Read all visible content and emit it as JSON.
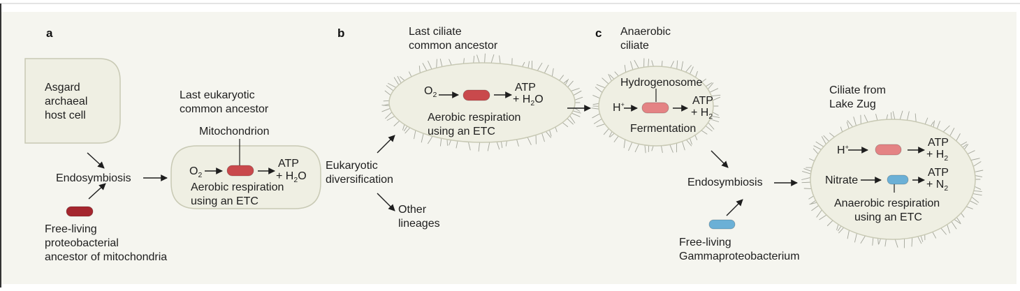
{
  "panels": {
    "a": "a",
    "b": "b",
    "c": "c"
  },
  "a": {
    "host_cell": [
      "Asgard",
      "archaeal",
      "host cell"
    ],
    "endosymbiosis": "Endosymbiosis",
    "free_living": [
      "Free-living",
      "proteobacterial",
      "ancestor of mitochondria"
    ],
    "lec_title": [
      "Last eukaryotic",
      "common ancestor"
    ],
    "mitochondrion": "Mitochondrion",
    "o2": "O",
    "o2_sub": "2",
    "atp": "ATP",
    "h2o_prefix": "+ H",
    "h2o_sub": "2",
    "h2o_suffix": "O",
    "aerobic": [
      "Aerobic respiration",
      "using an ETC"
    ],
    "diversification": [
      "Eukaryotic",
      "diversification"
    ]
  },
  "b": {
    "title": [
      "Last ciliate",
      "common ancestor"
    ],
    "o2": "O",
    "o2_sub": "2",
    "atp": "ATP",
    "h2o_prefix": "+ H",
    "h2o_sub": "2",
    "h2o_suffix": "O",
    "aerobic": [
      "Aerobic respiration",
      "using an ETC"
    ],
    "other": [
      "Other",
      "lineages"
    ]
  },
  "c": {
    "title": [
      "Anaerobic",
      "ciliate"
    ],
    "hydrogenosome": "Hydrogenosome",
    "hplus": "H",
    "hplus_sup": "+",
    "atp": "ATP",
    "h2_prefix": "+ H",
    "h2_sub": "2",
    "fermentation": "Fermentation",
    "endosymbiosis": "Endosymbiosis",
    "free_living": [
      "Free-living",
      "Gammaproteobacterium"
    ],
    "zug_title": [
      "Ciliate from",
      "Lake Zug"
    ],
    "nitrate": "Nitrate",
    "n2_prefix": "+ N",
    "n2_sub": "2",
    "anaerobic": [
      "Anaerobic respiration",
      "using an ETC"
    ]
  },
  "colors": {
    "mitochondrion": "#c9494c",
    "proteobacterium": "#a4262e",
    "hydrogenosome": "#e48384",
    "gammaproteobacterium": "#6bb0d6"
  }
}
